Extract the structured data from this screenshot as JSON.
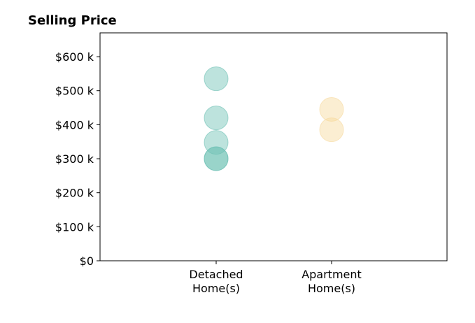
{
  "chart_data": {
    "type": "scatter",
    "title": "Selling Price",
    "xlabel": "",
    "ylabel": "",
    "categories": [
      {
        "line1": "Detached",
        "line2": "Home(s)"
      },
      {
        "line1": "Apartment",
        "line2": "Home(s)"
      }
    ],
    "series": [
      {
        "category": 0,
        "color": "#6cc0b4",
        "values": [
          535000,
          420000,
          348000,
          300000,
          300000
        ]
      },
      {
        "category": 1,
        "color": "#f6d99c",
        "values": [
          445000,
          385000
        ]
      }
    ],
    "ylim": [
      0,
      670000
    ],
    "yticks": [
      {
        "value": 0,
        "label": "$0"
      },
      {
        "value": 100000,
        "label": "$100 k"
      },
      {
        "value": 200000,
        "label": "$200 k"
      },
      {
        "value": 300000,
        "label": "$300 k"
      },
      {
        "value": 400000,
        "label": "$400 k"
      },
      {
        "value": 500000,
        "label": "$500 k"
      },
      {
        "value": 600000,
        "label": "$600 k"
      }
    ],
    "grid": false,
    "legend": "none"
  }
}
